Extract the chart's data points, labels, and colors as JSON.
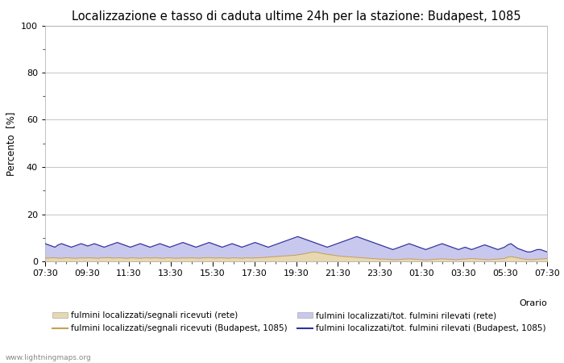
{
  "title": "Localizzazione e tasso di caduta ultime 24h per la stazione: Budapest, 1085",
  "ylabel": "Percento  [%]",
  "xlabel_right": "Orario",
  "watermark": "www.lightningmaps.org",
  "ylim": [
    0,
    100
  ],
  "yticks": [
    0,
    20,
    40,
    60,
    80,
    100
  ],
  "yticks_minor": [
    10,
    30,
    50,
    70,
    90
  ],
  "x_labels": [
    "07:30",
    "09:30",
    "11:30",
    "13:30",
    "15:30",
    "17:30",
    "19:30",
    "21:30",
    "23:30",
    "01:30",
    "03:30",
    "05:30",
    "07:30"
  ],
  "fill_network_color": "#e8d8b0",
  "fill_station_color": "#c8c8ee",
  "line_network_color": "#c8a050",
  "line_station_color": "#3030a0",
  "background_color": "#ffffff",
  "plot_bg_color": "#ffffff",
  "grid_color": "#bbbbbb",
  "title_fontsize": 10.5,
  "label_fontsize": 8.5,
  "tick_fontsize": 8,
  "network_fill_alpha": 1.0,
  "station_fill_alpha": 1.0,
  "network_data_rete": [
    1.5,
    1.4,
    1.5,
    1.5,
    1.4,
    1.3,
    1.5,
    1.5,
    1.4,
    1.3,
    1.4,
    1.5,
    1.4,
    1.5,
    1.5,
    1.4,
    1.3,
    1.5,
    1.5,
    1.6,
    1.5,
    1.4,
    1.5,
    1.5,
    1.4,
    1.3,
    1.5,
    1.5,
    1.4,
    1.3,
    1.5,
    1.5,
    1.4,
    1.5,
    1.5,
    1.4,
    1.3,
    1.5,
    1.5,
    1.4,
    1.3,
    1.4,
    1.5,
    1.4,
    1.5,
    1.5,
    1.4,
    1.3,
    1.5,
    1.5,
    1.6,
    1.5,
    1.4,
    1.5,
    1.5,
    1.4,
    1.3,
    1.5,
    1.5,
    1.4,
    1.3,
    1.5,
    1.5,
    1.4,
    1.5,
    1.5,
    1.6,
    1.7,
    1.8,
    1.9,
    2.0,
    2.1,
    2.2,
    2.3,
    2.4,
    2.5,
    2.6,
    2.8,
    3.0,
    3.2,
    3.5,
    3.8,
    4.0,
    3.8,
    3.5,
    3.2,
    3.0,
    2.8,
    2.6,
    2.4,
    2.2,
    2.1,
    2.0,
    1.9,
    1.8,
    1.7,
    1.6,
    1.5,
    1.4,
    1.3,
    1.2,
    1.1,
    1.0,
    1.0,
    0.9,
    0.8,
    0.7,
    0.7,
    0.8,
    0.9,
    1.0,
    1.1,
    1.0,
    0.9,
    0.8,
    0.7,
    0.6,
    0.7,
    0.8,
    0.9,
    1.0,
    1.1,
    1.0,
    0.9,
    0.8,
    0.7,
    0.8,
    0.9,
    1.0,
    1.1,
    1.2,
    1.1,
    1.0,
    0.9,
    0.8,
    0.7,
    0.8,
    0.9,
    1.0,
    1.1,
    1.2,
    1.8,
    2.0,
    1.8,
    1.5,
    1.2,
    1.0,
    0.8,
    0.7,
    0.8,
    0.9,
    1.0,
    1.1,
    1.2
  ],
  "network_data_station": [
    7.5,
    7.0,
    6.5,
    6.0,
    7.0,
    7.5,
    7.0,
    6.5,
    6.0,
    6.5,
    7.0,
    7.5,
    7.0,
    6.5,
    7.0,
    7.5,
    7.0,
    6.5,
    6.0,
    6.5,
    7.0,
    7.5,
    8.0,
    7.5,
    7.0,
    6.5,
    6.0,
    6.5,
    7.0,
    7.5,
    7.0,
    6.5,
    6.0,
    6.5,
    7.0,
    7.5,
    7.0,
    6.5,
    6.0,
    6.5,
    7.0,
    7.5,
    8.0,
    7.5,
    7.0,
    6.5,
    6.0,
    6.5,
    7.0,
    7.5,
    8.0,
    7.5,
    7.0,
    6.5,
    6.0,
    6.5,
    7.0,
    7.5,
    7.0,
    6.5,
    6.0,
    6.5,
    7.0,
    7.5,
    8.0,
    7.5,
    7.0,
    6.5,
    6.0,
    6.5,
    7.0,
    7.5,
    8.0,
    8.5,
    9.0,
    9.5,
    10.0,
    10.5,
    10.0,
    9.5,
    9.0,
    8.5,
    8.0,
    7.5,
    7.0,
    6.5,
    6.0,
    6.5,
    7.0,
    7.5,
    8.0,
    8.5,
    9.0,
    9.5,
    10.0,
    10.5,
    10.0,
    9.5,
    9.0,
    8.5,
    8.0,
    7.5,
    7.0,
    6.5,
    6.0,
    5.5,
    5.0,
    5.5,
    6.0,
    6.5,
    7.0,
    7.5,
    7.0,
    6.5,
    6.0,
    5.5,
    5.0,
    5.5,
    6.0,
    6.5,
    7.0,
    7.5,
    7.0,
    6.5,
    6.0,
    5.5,
    5.0,
    5.5,
    6.0,
    5.5,
    5.0,
    5.5,
    6.0,
    6.5,
    7.0,
    6.5,
    6.0,
    5.5,
    5.0,
    5.5,
    6.0,
    7.0,
    7.5,
    6.5,
    5.5,
    5.0,
    4.5,
    4.0,
    4.0,
    4.5,
    5.0,
    5.0,
    4.5,
    4.0
  ]
}
